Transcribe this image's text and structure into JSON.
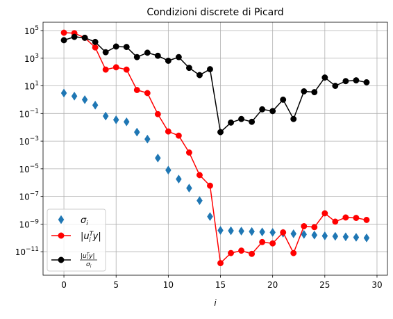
{
  "chart_data": {
    "type": "scatter",
    "title": "Condizioni discrete di Picard",
    "xlabel": "i",
    "ylabel": "",
    "y_scale": "log",
    "grid": true,
    "legend_position": "lower-left",
    "xlim": [
      -2,
      31
    ],
    "ylim": [
      2e-13,
      400000.0
    ],
    "x_ticks": [
      0,
      5,
      10,
      15,
      20,
      25,
      30
    ],
    "y_ticks": [
      {
        "value": 1e-11,
        "mantissa": "10",
        "exp": "−11"
      },
      {
        "value": 1e-09,
        "mantissa": "10",
        "exp": "−9"
      },
      {
        "value": 1e-07,
        "mantissa": "10",
        "exp": "−7"
      },
      {
        "value": 1e-05,
        "mantissa": "10",
        "exp": "−5"
      },
      {
        "value": 0.001,
        "mantissa": "10",
        "exp": "−3"
      },
      {
        "value": 0.1,
        "mantissa": "10",
        "exp": "−1"
      },
      {
        "value": 10,
        "mantissa": "10",
        "exp": "1"
      },
      {
        "value": 1000.0,
        "mantissa": "10",
        "exp": "3"
      },
      {
        "value": 100000.0,
        "mantissa": "10",
        "exp": "5"
      }
    ],
    "x": [
      0,
      1,
      2,
      3,
      4,
      5,
      6,
      7,
      8,
      9,
      10,
      11,
      12,
      13,
      14,
      15,
      16,
      17,
      18,
      19,
      20,
      21,
      22,
      23,
      24,
      25,
      26,
      27,
      28,
      29
    ],
    "series": [
      {
        "key": "sigma",
        "marker": "diamond",
        "line": false,
        "color": "#1f77b4",
        "values": [
          3.0,
          1.8,
          1.0,
          0.4,
          0.065,
          0.035,
          0.025,
          0.0045,
          0.0014,
          6e-05,
          8e-06,
          1.8e-06,
          4e-07,
          5e-08,
          3.5e-09,
          3.5e-10,
          3.3e-10,
          3.1e-10,
          2.9e-10,
          2.7e-10,
          2.5e-10,
          2.2e-10,
          2e-10,
          1.8e-10,
          1.6e-10,
          1.4e-10,
          1.3e-10,
          1.2e-10,
          1.1e-10,
          1e-10
        ]
      },
      {
        "key": "uty",
        "marker": "circle",
        "line": true,
        "color": "#ff0000",
        "values": [
          70000,
          65000,
          30000,
          6000,
          150,
          220,
          150,
          5,
          3,
          0.09,
          0.005,
          0.0025,
          0.00015,
          3.5e-06,
          6e-07,
          1.5e-12,
          8e-12,
          1.2e-11,
          7e-12,
          5e-11,
          4e-11,
          2.5e-10,
          8e-12,
          7e-10,
          6e-10,
          6e-09,
          1.5e-09,
          3e-09,
          2.8e-09,
          2e-09
        ]
      },
      {
        "key": "ratio",
        "marker": "circle",
        "line": true,
        "color": "#000000",
        "values": [
          20000,
          35000,
          30000,
          15000,
          2700,
          7000,
          6500,
          1200,
          2500,
          1500,
          650,
          1200,
          200,
          60,
          160,
          0.0045,
          0.022,
          0.04,
          0.025,
          0.2,
          0.15,
          1,
          0.04,
          4,
          3.5,
          40,
          10,
          22,
          25,
          18
        ]
      }
    ],
    "legend": [
      {
        "series": "sigma",
        "label_html": "<tspan font-style=\"italic\">σ</tspan><tspan font-style=\"italic\" font-size=\"9\" dy=\"3\">i</tspan>"
      },
      {
        "series": "uty",
        "label_html": "<tspan>|</tspan><tspan font-style=\"italic\">u</tspan><tspan font-style=\"italic\" font-size=\"9\" dy=\"-5\">T</tspan><tspan font-style=\"italic\" font-size=\"9\" dx=\"-6\" dy=\"9\">i</tspan><tspan font-style=\"italic\" dx=\"3\" dy=\"-4\">y</tspan><tspan>|</tspan>"
      },
      {
        "series": "ratio",
        "fraction": {
          "numerator": "|u",
          "numerator_sup": "T",
          "numerator_sub": "i",
          "numerator_tail": "y|",
          "denominator": "σ",
          "denominator_sub": "i"
        }
      }
    ]
  }
}
